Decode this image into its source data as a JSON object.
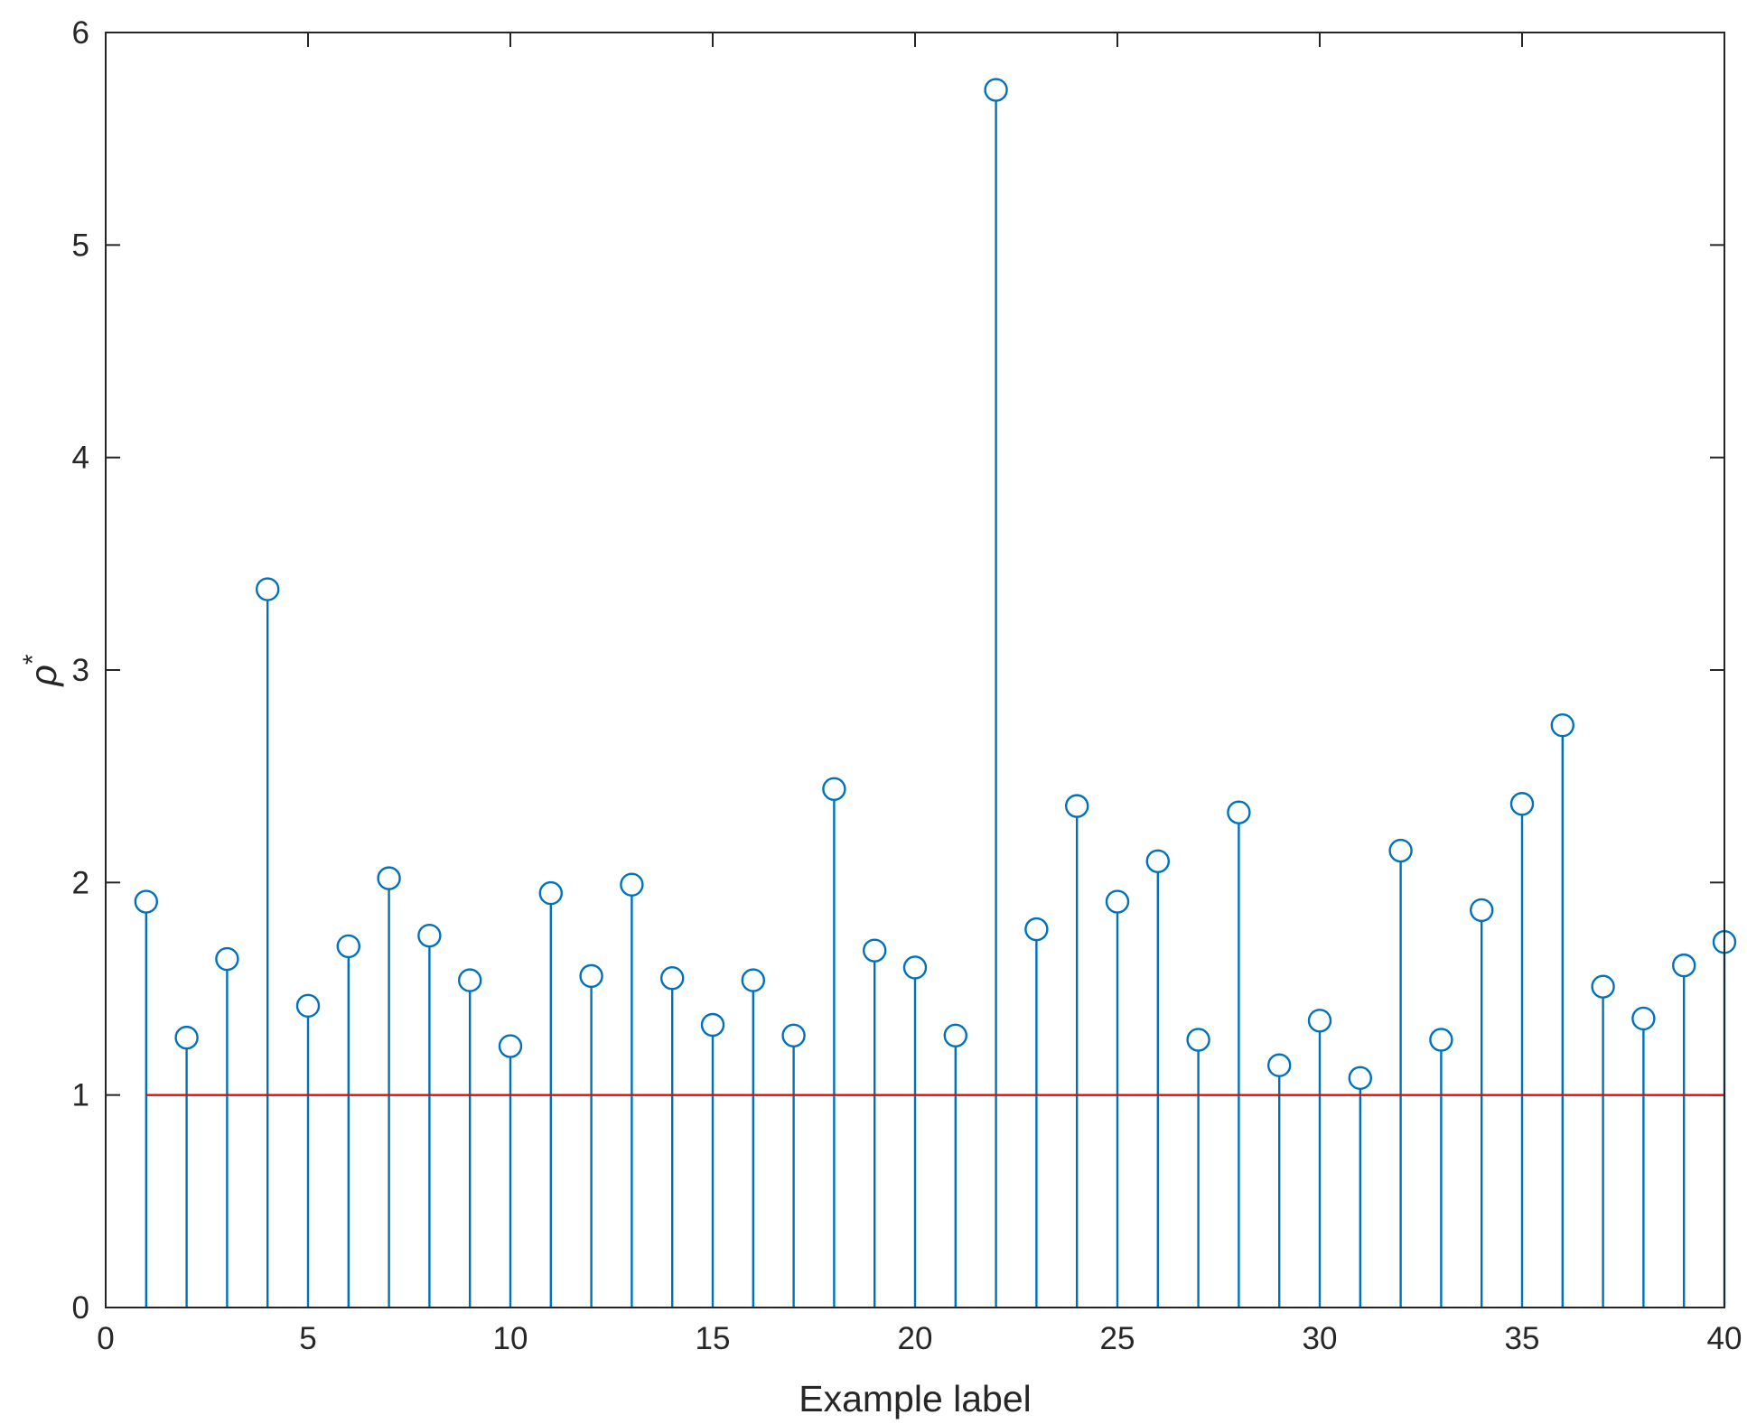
{
  "chart_data": {
    "type": "stem",
    "xlabel": "Example label",
    "ylabel": {
      "base": "ρ",
      "superscript": "*"
    },
    "xlim": [
      0,
      40
    ],
    "ylim": [
      0,
      6
    ],
    "xticks": [
      0,
      5,
      10,
      15,
      20,
      25,
      30,
      35,
      40
    ],
    "yticks": [
      0,
      1,
      2,
      3,
      4,
      5,
      6
    ],
    "grid": false,
    "box": true,
    "series": [
      {
        "color": "#0072BD",
        "marker": "circle-open",
        "x": [
          1,
          2,
          3,
          4,
          5,
          6,
          7,
          8,
          9,
          10,
          11,
          12,
          13,
          14,
          15,
          16,
          17,
          18,
          19,
          20,
          21,
          22,
          23,
          24,
          25,
          26,
          27,
          28,
          29,
          30,
          31,
          32,
          33,
          34,
          35,
          36,
          37,
          38,
          39,
          40
        ],
        "values": [
          1.91,
          1.27,
          1.64,
          3.38,
          1.42,
          1.7,
          2.02,
          1.75,
          1.54,
          1.23,
          1.95,
          1.56,
          1.99,
          1.55,
          1.33,
          1.54,
          1.28,
          2.44,
          1.68,
          1.6,
          1.28,
          5.73,
          1.78,
          2.36,
          1.91,
          2.1,
          1.26,
          2.33,
          1.14,
          1.35,
          1.08,
          2.15,
          1.26,
          1.87,
          2.37,
          2.74,
          1.51,
          1.36,
          1.61,
          1.72
        ]
      }
    ],
    "reference_line": {
      "y": 1,
      "x_from": 1,
      "x_to": 40,
      "color": "#FF0000"
    }
  }
}
